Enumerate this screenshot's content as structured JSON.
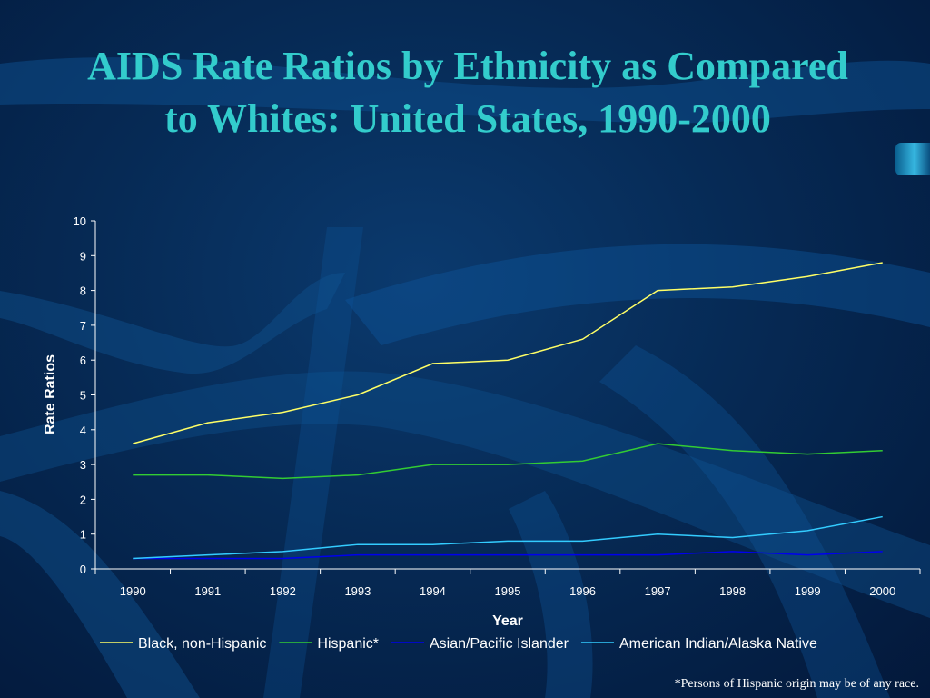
{
  "slide": {
    "title": "AIDS Rate Ratios by Ethnicity as Compared to Whites: United States, 1990-2000",
    "footnote": "*Persons of Hispanic origin may be of any race."
  },
  "colors": {
    "title": "#33cccc",
    "background": "#062a55"
  },
  "chart_data": {
    "type": "line",
    "xlabel": "Year",
    "ylabel": "Rate Ratios",
    "ylim": [
      0,
      10
    ],
    "yticks": [
      0,
      1,
      2,
      3,
      4,
      5,
      6,
      7,
      8,
      9,
      10
    ],
    "grid": false,
    "legend_position": "bottom",
    "categories": [
      "1990",
      "1991",
      "1992",
      "1993",
      "1994",
      "1995",
      "1996",
      "1997",
      "1998",
      "1999",
      "2000"
    ],
    "series": [
      {
        "name": "Black, non-Hispanic",
        "color": "#ffff66",
        "values": [
          3.6,
          4.2,
          4.5,
          5.0,
          5.9,
          6.0,
          6.6,
          8.0,
          8.1,
          8.4,
          8.8
        ]
      },
      {
        "name": "Hispanic*",
        "color": "#33cc33",
        "values": [
          2.7,
          2.7,
          2.6,
          2.7,
          3.0,
          3.0,
          3.1,
          3.6,
          3.4,
          3.3,
          3.4
        ]
      },
      {
        "name": "Asian/Pacific Islander",
        "color": "#0000ee",
        "values": [
          0.3,
          0.3,
          0.3,
          0.4,
          0.4,
          0.4,
          0.4,
          0.4,
          0.5,
          0.4,
          0.5
        ]
      },
      {
        "name": "American Indian/Alaska Native",
        "color": "#33ccff",
        "values": [
          0.3,
          0.4,
          0.5,
          0.7,
          0.7,
          0.8,
          0.8,
          1.0,
          0.9,
          1.1,
          1.5
        ]
      }
    ]
  }
}
